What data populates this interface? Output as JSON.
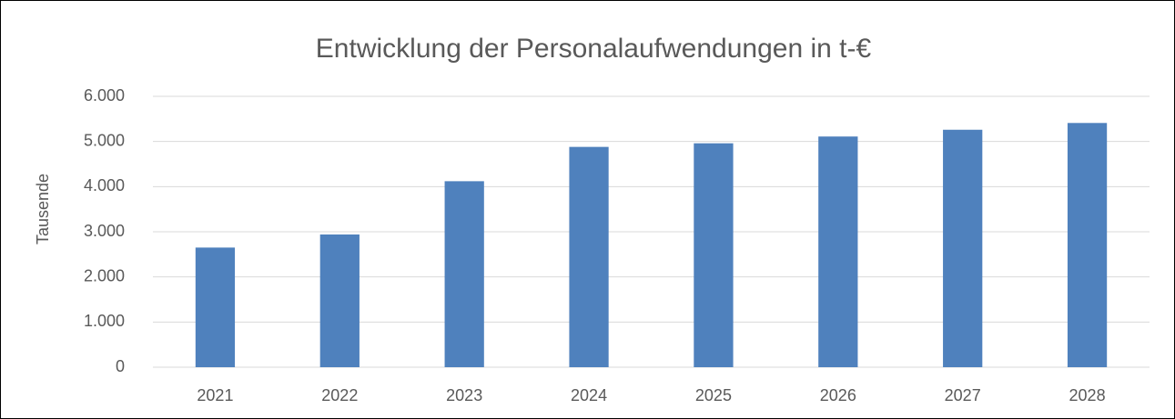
{
  "chart_data": {
    "type": "bar",
    "title": "Entwicklung der Personalaufwendungen in t-€",
    "y_label": "Tausende",
    "categories": [
      "2021",
      "2022",
      "2023",
      "2024",
      "2025",
      "2026",
      "2027",
      "2028"
    ],
    "values": [
      2650,
      2940,
      4120,
      4880,
      4960,
      5110,
      5260,
      5410
    ],
    "color": "#4f81bd",
    "ylim": [
      0,
      6000
    ],
    "yticks": [
      0,
      {
        "value": 1000,
        "label": "1.000"
      },
      {
        "value": 2000,
        "label": "2.000"
      },
      {
        "value": 3000,
        "label": "3.000"
      },
      {
        "value": 4000,
        "label": "4.000"
      },
      {
        "value": 5000,
        "label": "5.000"
      },
      {
        "value": 6000,
        "label": "6.000"
      }
    ],
    "grid": true
  }
}
